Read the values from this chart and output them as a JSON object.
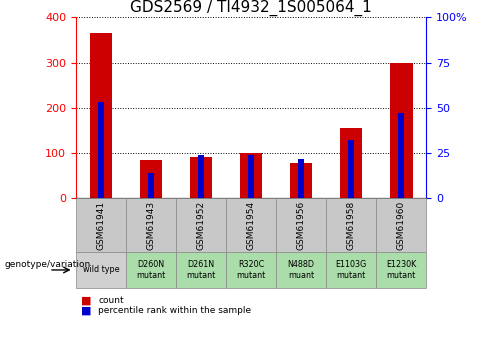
{
  "title": "GDS2569 / TI4932_1S005064_1",
  "samples": [
    "GSM61941",
    "GSM61943",
    "GSM61952",
    "GSM61954",
    "GSM61956",
    "GSM61958",
    "GSM61960"
  ],
  "counts": [
    365,
    85,
    92,
    100,
    78,
    155,
    300
  ],
  "percentiles": [
    53,
    14,
    24,
    24,
    22,
    32,
    47
  ],
  "genotypes": [
    "wild type",
    "D260N\nmutant",
    "D261N\nmutant",
    "R320C\nmutant",
    "N488D\nmuant",
    "E1103G\nmutant",
    "E1230K\nmutant"
  ],
  "genotype_colors": [
    "#d0d0d0",
    "#aaddaa",
    "#aaddaa",
    "#aaddaa",
    "#aaddaa",
    "#aaddaa",
    "#aaddaa"
  ],
  "sample_row_color": "#c8c8c8",
  "bar_color": "#cc0000",
  "pct_color": "#0000cc",
  "ylim_left": [
    0,
    400
  ],
  "ylim_right": [
    0,
    100
  ],
  "yticks_left": [
    0,
    100,
    200,
    300,
    400
  ],
  "yticks_right": [
    0,
    25,
    50,
    75,
    100
  ],
  "background_color": "#ffffff",
  "title_fontsize": 11,
  "tick_fontsize": 8,
  "legend_fontsize": 8
}
